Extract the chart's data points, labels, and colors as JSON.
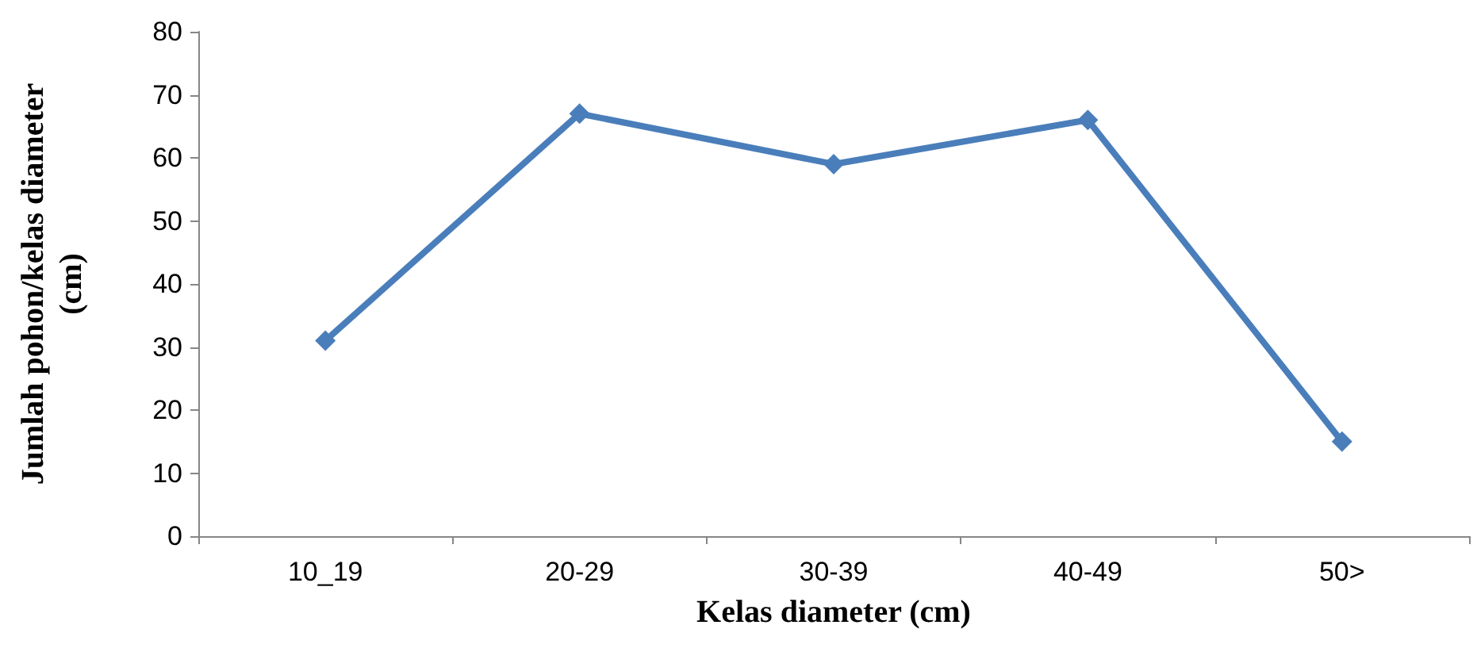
{
  "chart_data": {
    "type": "line",
    "xlabel": "Kelas diameter (cm)",
    "ylabel": "Jumlah pohon/kelas diameter (cm)",
    "categories": [
      "10_19",
      "20-29",
      "30-39",
      "40-49",
      "50>"
    ],
    "series": [
      {
        "color": "#4a7ebb",
        "values": [
          31,
          67,
          59,
          66,
          15
        ]
      }
    ],
    "ylim": [
      0,
      80
    ],
    "yticks": [
      0,
      10,
      20,
      30,
      40,
      50,
      60,
      70,
      80
    ],
    "grid": false,
    "marker": "diamond",
    "line_style": "solid"
  }
}
